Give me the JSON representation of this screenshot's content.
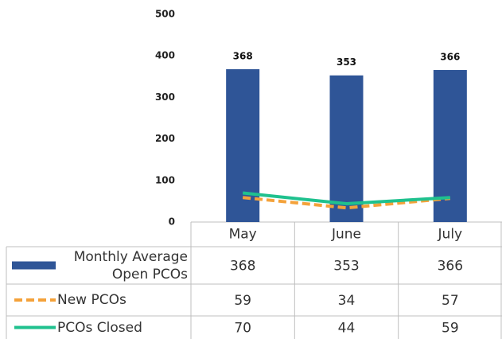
{
  "chart_data": {
    "type": "bar",
    "categories": [
      "May",
      "June",
      "July"
    ],
    "series": [
      {
        "name": "Monthly Average Open PCOs",
        "type": "bar",
        "color": "#2f5597",
        "values": [
          368,
          353,
          366
        ]
      },
      {
        "name": "New PCOs",
        "type": "line",
        "line_style": "dashed",
        "color": "#f4a23a",
        "values": [
          59,
          34,
          57
        ]
      },
      {
        "name": "PCOs Closed",
        "type": "line",
        "line_style": "solid",
        "color": "#1fc18e",
        "values": [
          70,
          44,
          59
        ]
      }
    ],
    "ylim": [
      0,
      500
    ],
    "yticks": [
      0,
      100,
      200,
      300,
      400,
      500
    ],
    "grid": false,
    "data_table": true
  }
}
